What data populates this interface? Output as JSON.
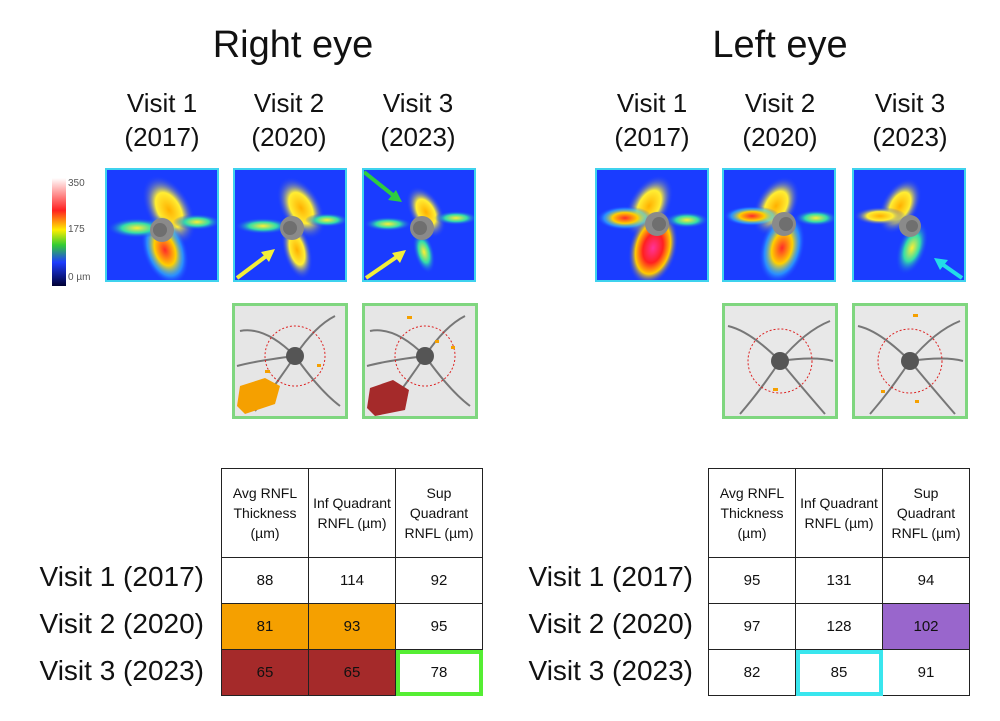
{
  "right_eye": {
    "title": "Right eye",
    "visits": [
      {
        "line1": "Visit 1",
        "line2": "(2017)"
      },
      {
        "line1": "Visit 2",
        "line2": "(2020)"
      },
      {
        "line1": "Visit 3",
        "line2": "(2023)"
      }
    ],
    "scale": {
      "top": "350",
      "mid": "175",
      "bottom": "0 µm"
    },
    "table": {
      "headers": [
        "Avg RNFL Thickness (µm)",
        "Inf Quadrant RNFL (µm)",
        "Sup Quadrant RNFL (µm)"
      ],
      "rows": [
        {
          "label": "Visit 1 (2017)",
          "values": [
            "88",
            "114",
            "92"
          ]
        },
        {
          "label": "Visit 2 (2020)",
          "values": [
            "81",
            "93",
            "95"
          ]
        },
        {
          "label": "Visit 3 (2023)",
          "values": [
            "65",
            "65",
            "78"
          ]
        }
      ]
    }
  },
  "left_eye": {
    "title": "Left eye",
    "visits": [
      {
        "line1": "Visit 1",
        "line2": "(2017)"
      },
      {
        "line1": "Visit 2",
        "line2": "(2020)"
      },
      {
        "line1": "Visit 3",
        "line2": "(2023)"
      }
    ],
    "table": {
      "headers": [
        "Avg RNFL Thickness (µm)",
        "Inf Quadrant RNFL (µm)",
        "Sup Quadrant RNFL (µm)"
      ],
      "rows": [
        {
          "label": "Visit 1 (2017)",
          "values": [
            "95",
            "131",
            "94"
          ]
        },
        {
          "label": "Visit 2 (2020)",
          "values": [
            "97",
            "128",
            "102"
          ]
        },
        {
          "label": "Visit 3 (2023)",
          "values": [
            "82",
            "85",
            "91"
          ]
        }
      ]
    }
  },
  "colors": {
    "orange": "#f5a000",
    "dark_red": "#a52a2a",
    "purple": "#9966cc",
    "green_highlight": "#55ee33",
    "cyan_highlight": "#39e6ee",
    "yellow_arrow": "#f2ee3a",
    "green_arrow": "#2ecc40",
    "cyan_arrow": "#22dde8"
  }
}
